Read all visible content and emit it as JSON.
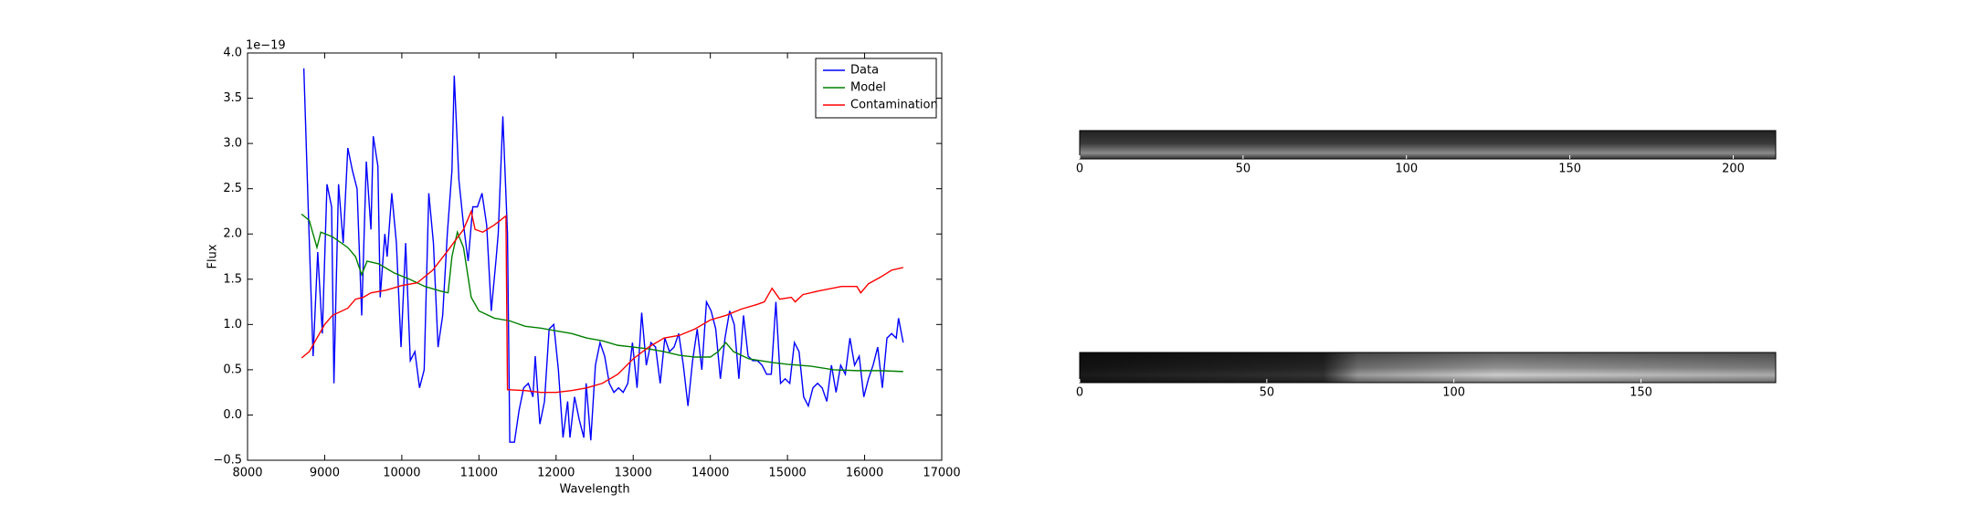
{
  "chart_data": [
    {
      "type": "line",
      "xlabel": "Wavelength",
      "ylabel": "Flux",
      "y_offset_label": "1e−19",
      "xlim": [
        8000,
        17000
      ],
      "ylim": [
        -0.5,
        4.0
      ],
      "xticks": [
        8000,
        9000,
        10000,
        11000,
        12000,
        13000,
        14000,
        15000,
        16000,
        17000
      ],
      "yticks": [
        {
          "value": -0.5,
          "label": "−0.5"
        },
        {
          "value": 0.0,
          "label": "0.0"
        },
        {
          "value": 0.5,
          "label": "0.5"
        },
        {
          "value": 1.0,
          "label": "1.0"
        },
        {
          "value": 1.5,
          "label": "1.5"
        },
        {
          "value": 2.0,
          "label": "2.0"
        },
        {
          "value": 2.5,
          "label": "2.5"
        },
        {
          "value": 3.0,
          "label": "3.0"
        },
        {
          "value": 3.5,
          "label": "3.5"
        },
        {
          "value": 4.0,
          "label": "4.0"
        }
      ],
      "legend": "upper right",
      "series": [
        {
          "name": "Data",
          "color": "#0000ff",
          "x": [
            8730,
            8790,
            8850,
            8910,
            8970,
            9030,
            9090,
            9120,
            9180,
            9240,
            9300,
            9360,
            9420,
            9480,
            9540,
            9600,
            9630,
            9690,
            9720,
            9780,
            9810,
            9870,
            9930,
            9990,
            10050,
            10110,
            10170,
            10230,
            10290,
            10350,
            10410,
            10470,
            10530,
            10590,
            10650,
            10680,
            10740,
            10800,
            10860,
            10920,
            10980,
            11040,
            11100,
            11160,
            11220,
            11250,
            11310,
            11370,
            11400,
            11460,
            11520,
            11580,
            11640,
            11700,
            11730,
            11790,
            11850,
            11910,
            11970,
            12030,
            12090,
            12150,
            12180,
            12240,
            12300,
            12360,
            12390,
            12450,
            12510,
            12570,
            12630,
            12690,
            12750,
            12810,
            12870,
            12930,
            12990,
            13050,
            13110,
            13170,
            13230,
            13290,
            13350,
            13410,
            13470,
            13530,
            13590,
            13650,
            13710,
            13770,
            13830,
            13890,
            13950,
            14010,
            14070,
            14130,
            14190,
            14250,
            14310,
            14370,
            14430,
            14490,
            14550,
            14610,
            14670,
            14730,
            14790,
            14850,
            14910,
            14970,
            15030,
            15090,
            15150,
            15210,
            15270,
            15330,
            15390,
            15450,
            15510,
            15570,
            15630,
            15690,
            15750,
            15810,
            15870,
            15930,
            15990,
            16050,
            16110,
            16170,
            16230,
            16290,
            16350,
            16410,
            16440,
            16500
          ],
          "values": [
            3.83,
            2.2,
            0.65,
            1.8,
            0.9,
            2.55,
            2.3,
            0.35,
            2.55,
            1.9,
            2.95,
            2.7,
            2.5,
            1.1,
            2.8,
            2.05,
            3.08,
            2.75,
            1.3,
            2.0,
            1.75,
            2.45,
            1.9,
            0.75,
            1.9,
            0.6,
            0.7,
            0.3,
            0.5,
            2.45,
            1.9,
            0.75,
            1.1,
            2.0,
            2.7,
            3.75,
            2.6,
            2.1,
            1.7,
            2.3,
            2.3,
            2.45,
            2.1,
            1.15,
            1.7,
            2.0,
            3.3,
            2.0,
            -0.3,
            -0.3,
            0.05,
            0.3,
            0.35,
            0.2,
            0.65,
            -0.1,
            0.15,
            0.95,
            1.0,
            0.5,
            -0.25,
            0.15,
            -0.25,
            0.2,
            -0.05,
            -0.25,
            0.35,
            -0.28,
            0.55,
            0.8,
            0.65,
            0.35,
            0.25,
            0.3,
            0.25,
            0.35,
            0.8,
            0.3,
            1.13,
            0.55,
            0.8,
            0.75,
            0.35,
            0.85,
            0.7,
            0.75,
            0.9,
            0.55,
            0.1,
            0.6,
            0.95,
            0.5,
            1.25,
            1.15,
            0.95,
            0.4,
            0.85,
            1.15,
            1.0,
            0.4,
            1.1,
            0.65,
            0.6,
            0.6,
            0.55,
            0.45,
            0.45,
            1.25,
            0.35,
            0.4,
            0.35,
            0.8,
            0.7,
            0.2,
            0.1,
            0.3,
            0.35,
            0.3,
            0.15,
            0.55,
            0.25,
            0.55,
            0.45,
            0.85,
            0.55,
            0.65,
            0.2,
            0.4,
            0.55,
            0.75,
            0.3,
            0.85,
            0.9,
            0.85,
            1.07,
            0.8
          ]
        },
        {
          "name": "Model",
          "color": "#008000",
          "x": [
            8700,
            8800,
            8900,
            8950,
            9100,
            9300,
            9400,
            9480,
            9550,
            9700,
            9900,
            10100,
            10300,
            10500,
            10600,
            10650,
            10720,
            10800,
            10900,
            11000,
            11200,
            11400,
            11600,
            11800,
            12000,
            12200,
            12400,
            12600,
            12800,
            13000,
            13200,
            13400,
            13600,
            13800,
            14000,
            14100,
            14200,
            14300,
            14500,
            14800,
            15000,
            15300,
            15600,
            15900,
            16200,
            16500
          ],
          "values": [
            2.22,
            2.15,
            1.85,
            2.02,
            1.97,
            1.85,
            1.75,
            1.55,
            1.7,
            1.67,
            1.57,
            1.5,
            1.42,
            1.37,
            1.35,
            1.75,
            2.02,
            1.85,
            1.3,
            1.15,
            1.07,
            1.04,
            0.98,
            0.96,
            0.93,
            0.9,
            0.85,
            0.82,
            0.77,
            0.75,
            0.73,
            0.7,
            0.66,
            0.64,
            0.64,
            0.7,
            0.8,
            0.7,
            0.62,
            0.58,
            0.56,
            0.54,
            0.5,
            0.49,
            0.49,
            0.48
          ]
        },
        {
          "name": "Contamination",
          "color": "#ff0000",
          "x": [
            8700,
            8800,
            8900,
            9000,
            9100,
            9300,
            9400,
            9500,
            9600,
            9800,
            10000,
            10200,
            10400,
            10600,
            10800,
            10900,
            10950,
            11050,
            11200,
            11350,
            11370,
            11600,
            11800,
            12000,
            12200,
            12400,
            12600,
            12800,
            13000,
            13200,
            13400,
            13600,
            13800,
            14000,
            14200,
            14400,
            14600,
            14700,
            14800,
            14900,
            15050,
            15100,
            15200,
            15400,
            15700,
            15900,
            15950,
            16050,
            16200,
            16350,
            16500
          ],
          "values": [
            0.63,
            0.7,
            0.85,
            1.0,
            1.1,
            1.18,
            1.28,
            1.3,
            1.35,
            1.38,
            1.43,
            1.46,
            1.6,
            1.82,
            2.05,
            2.25,
            2.05,
            2.02,
            2.1,
            2.2,
            0.28,
            0.27,
            0.25,
            0.25,
            0.27,
            0.3,
            0.35,
            0.45,
            0.62,
            0.75,
            0.85,
            0.88,
            0.95,
            1.05,
            1.1,
            1.17,
            1.22,
            1.25,
            1.4,
            1.28,
            1.3,
            1.25,
            1.33,
            1.37,
            1.42,
            1.42,
            1.35,
            1.45,
            1.52,
            1.6,
            1.63
          ]
        }
      ]
    },
    {
      "type": "image",
      "xlim": [
        0,
        213
      ],
      "xticks": [
        0,
        50,
        100,
        150,
        200
      ]
    },
    {
      "type": "image",
      "xlim": [
        0,
        186
      ],
      "xticks": [
        0,
        50,
        100,
        150
      ]
    }
  ]
}
